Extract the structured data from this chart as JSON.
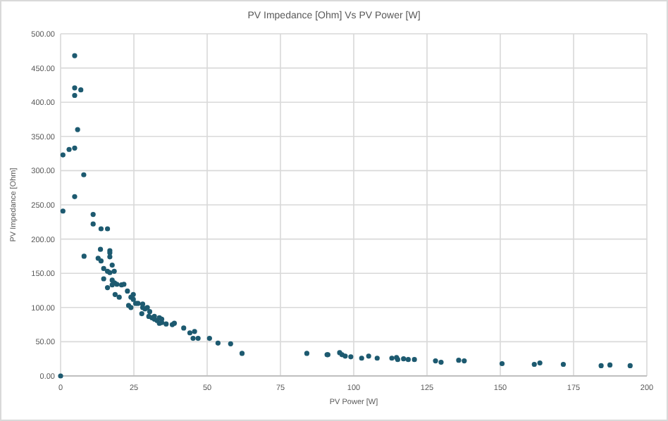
{
  "chart_data": {
    "type": "scatter",
    "title": "PV Impedance [Ohm] Vs PV Power [W]",
    "xlabel": "PV Power [W]",
    "ylabel": "PV Impedance [Ohm]",
    "xlim": [
      0,
      200
    ],
    "xticks": [
      0,
      25,
      50,
      75,
      100,
      125,
      150,
      175,
      200
    ],
    "ylim": [
      0,
      500
    ],
    "yticks": [
      {
        "value": 0,
        "label": "0.00"
      },
      {
        "value": 50,
        "label": "50.00"
      },
      {
        "value": 100,
        "label": "100.00"
      },
      {
        "value": 150,
        "label": "150.00"
      },
      {
        "value": 200,
        "label": "200.00"
      },
      {
        "value": 250,
        "label": "250.00"
      },
      {
        "value": 300,
        "label": "300.00"
      },
      {
        "value": 350,
        "label": "350.00"
      },
      {
        "value": 400,
        "label": "400.00"
      },
      {
        "value": 450,
        "label": "450.00"
      },
      {
        "value": 500,
        "label": "500.00"
      }
    ],
    "grid": true,
    "marker": "circle",
    "series": [
      {
        "color": "#1d5a70",
        "x": [
          4.8,
          4.8,
          6.9,
          4.8,
          5.8,
          0.8,
          2.9,
          4.8,
          7.9,
          4.8,
          0.8,
          0,
          11.1,
          11.1,
          13.8,
          16,
          8,
          13.6,
          12.8,
          13.8,
          16.8,
          16.8,
          16.8,
          14.7,
          17.6,
          16,
          16.8,
          18.3,
          14.7,
          16,
          17.6,
          18.4,
          17.6,
          19.2,
          18.6,
          20,
          20.8,
          21.6,
          22.8,
          23.2,
          24,
          24,
          24.8,
          24.8,
          25.6,
          26.4,
          28,
          28,
          28.8,
          27.7,
          29.6,
          30.4,
          30.1,
          31.2,
          32,
          32,
          32.9,
          33.7,
          33.7,
          34.5,
          34.5,
          36,
          38.1,
          38.8,
          42,
          44.1,
          45.7,
          45.2,
          46.9,
          50.8,
          53.7,
          58,
          61.9,
          84,
          90.9,
          91.2,
          95.2,
          96,
          97.1,
          99,
          102.7,
          105.1,
          108,
          113,
          114.6,
          115,
          117,
          118.6,
          120.7,
          127.9,
          129.8,
          135.8,
          137.7,
          150.6,
          161.6,
          163.5,
          171.5,
          184.4,
          187.4,
          194.3
        ],
        "values": [
          468,
          421,
          418,
          410,
          360,
          323,
          331,
          333,
          294,
          262,
          241,
          0,
          236,
          222,
          215,
          215,
          175,
          185,
          172,
          168,
          183,
          180,
          174,
          157,
          162,
          153,
          151,
          153,
          142,
          129,
          140,
          136,
          133,
          134,
          119,
          115,
          133,
          134,
          124,
          103,
          100,
          115,
          119,
          112,
          106,
          106,
          100,
          105,
          98,
          91,
          100,
          94,
          87,
          85,
          87,
          83,
          81,
          77,
          85,
          83,
          78,
          76,
          75,
          77,
          70,
          63,
          65,
          55,
          55,
          55,
          48,
          47,
          33,
          33,
          31,
          31,
          34,
          31,
          29,
          28,
          26,
          29,
          26,
          26,
          27,
          24,
          25,
          24,
          24,
          22,
          20,
          23,
          22,
          18,
          17,
          19,
          17,
          15,
          16,
          15
        ]
      }
    ]
  }
}
